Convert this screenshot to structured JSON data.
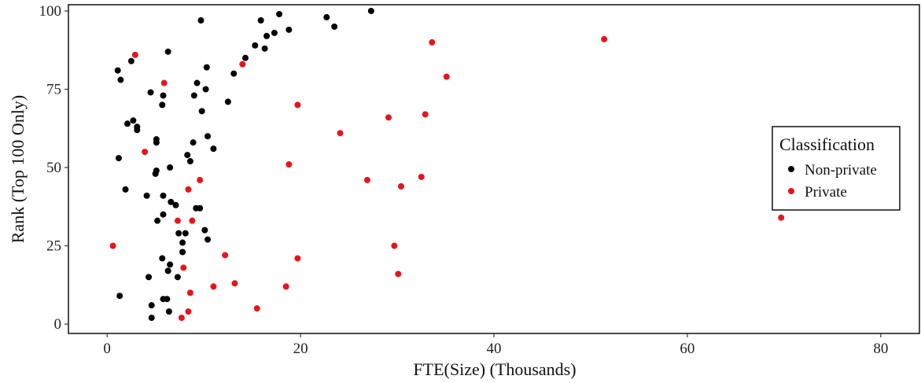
{
  "chart_data": {
    "type": "scatter",
    "xlabel": "FTE(Size) (Thousands)",
    "ylabel": "Rank (Top 100 Only)",
    "xlim": [
      -4,
      84
    ],
    "ylim": [
      -3,
      102
    ],
    "x_ticks": [
      0,
      20,
      40,
      60,
      80
    ],
    "y_ticks": [
      0,
      25,
      50,
      75,
      100
    ],
    "grid": false,
    "legend": {
      "title": "Classification",
      "position": "right",
      "entries": [
        {
          "label": "Non-private",
          "color": "#000000"
        },
        {
          "label": "Private",
          "color": "#e8141b"
        }
      ]
    },
    "series": [
      {
        "name": "Non-private",
        "color": "#000000",
        "points": [
          [
            27.3,
            100
          ],
          [
            17.8,
            99
          ],
          [
            22.7,
            98
          ],
          [
            15.9,
            97
          ],
          [
            9.7,
            97
          ],
          [
            23.5,
            95
          ],
          [
            18.8,
            94
          ],
          [
            17.3,
            93
          ],
          [
            16.5,
            92
          ],
          [
            15.3,
            89
          ],
          [
            16.3,
            88
          ],
          [
            6.3,
            87
          ],
          [
            2.5,
            84
          ],
          [
            14.3,
            85
          ],
          [
            1.1,
            81
          ],
          [
            10.3,
            82
          ],
          [
            13.1,
            80
          ],
          [
            1.4,
            78
          ],
          [
            9.3,
            77
          ],
          [
            10.2,
            75
          ],
          [
            4.5,
            74
          ],
          [
            5.8,
            73
          ],
          [
            9.0,
            73
          ],
          [
            12.5,
            71
          ],
          [
            5.7,
            70
          ],
          [
            9.8,
            68
          ],
          [
            2.7,
            65
          ],
          [
            2.1,
            64
          ],
          [
            3.1,
            63
          ],
          [
            3.1,
            62
          ],
          [
            10.4,
            60
          ],
          [
            5.1,
            59
          ],
          [
            5.1,
            58
          ],
          [
            8.9,
            58
          ],
          [
            11.0,
            56
          ],
          [
            8.3,
            54
          ],
          [
            1.2,
            53
          ],
          [
            8.6,
            52
          ],
          [
            6.5,
            50
          ],
          [
            5.1,
            49
          ],
          [
            5.0,
            48
          ],
          [
            1.9,
            43
          ],
          [
            4.1,
            41
          ],
          [
            5.8,
            41
          ],
          [
            6.6,
            39
          ],
          [
            7.1,
            38
          ],
          [
            9.2,
            37
          ],
          [
            9.6,
            37
          ],
          [
            5.8,
            35
          ],
          [
            5.2,
            33
          ],
          [
            7.4,
            29
          ],
          [
            8.1,
            29
          ],
          [
            10.1,
            30
          ],
          [
            10.4,
            27
          ],
          [
            7.8,
            26
          ],
          [
            7.8,
            23
          ],
          [
            5.7,
            21
          ],
          [
            6.5,
            19
          ],
          [
            6.3,
            17
          ],
          [
            4.3,
            15
          ],
          [
            7.3,
            15
          ],
          [
            1.3,
            9
          ],
          [
            5.8,
            8
          ],
          [
            6.2,
            8
          ],
          [
            4.6,
            6
          ],
          [
            6.4,
            4
          ],
          [
            4.6,
            2
          ]
        ]
      },
      {
        "name": "Private",
        "color": "#e8141b",
        "points": [
          [
            51.4,
            91
          ],
          [
            33.6,
            90
          ],
          [
            2.9,
            86
          ],
          [
            14.0,
            83
          ],
          [
            35.1,
            79
          ],
          [
            5.9,
            77
          ],
          [
            19.7,
            70
          ],
          [
            32.9,
            67
          ],
          [
            29.1,
            66
          ],
          [
            24.1,
            61
          ],
          [
            3.9,
            55
          ],
          [
            18.8,
            51
          ],
          [
            9.6,
            46
          ],
          [
            32.5,
            47
          ],
          [
            26.9,
            46
          ],
          [
            30.4,
            44
          ],
          [
            8.4,
            43
          ],
          [
            7.3,
            33
          ],
          [
            8.8,
            33
          ],
          [
            69.7,
            34
          ],
          [
            0.6,
            25
          ],
          [
            29.7,
            25
          ],
          [
            12.2,
            22
          ],
          [
            19.7,
            21
          ],
          [
            7.9,
            18
          ],
          [
            30.1,
            16
          ],
          [
            13.2,
            13
          ],
          [
            11.0,
            12
          ],
          [
            18.5,
            12
          ],
          [
            8.6,
            10
          ],
          [
            15.5,
            5
          ],
          [
            8.4,
            4
          ],
          [
            7.7,
            2
          ]
        ]
      }
    ]
  }
}
